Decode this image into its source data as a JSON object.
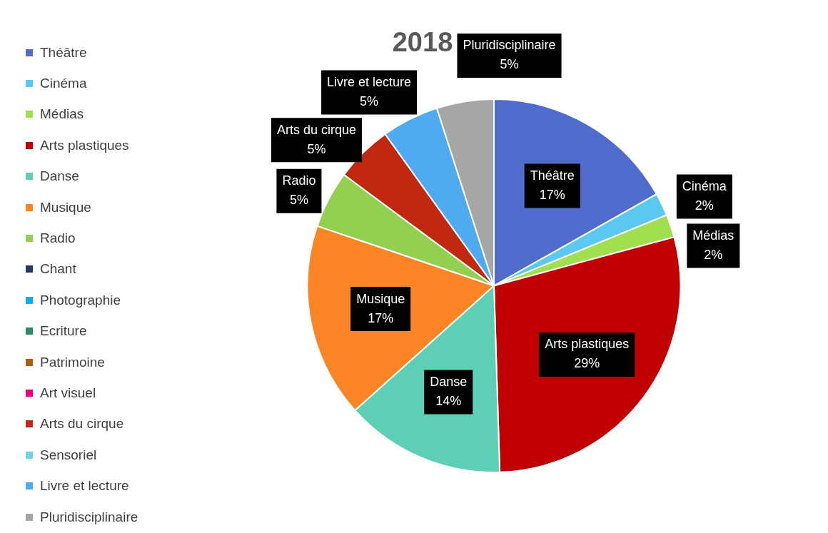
{
  "chart_data": {
    "type": "pie",
    "title": "2018",
    "categories": [
      "Théâtre",
      "Cinéma",
      "Médias",
      "Arts plastiques",
      "Danse",
      "Musique",
      "Radio",
      "Chant",
      "Photographie",
      "Ecriture",
      "Patrimoine",
      "Art visuel",
      "Arts du cirque",
      "Sensoriel",
      "Livre et lecture",
      "Pluridisciplinaire"
    ],
    "values": [
      17,
      2,
      2,
      29,
      14,
      17,
      5,
      0,
      0,
      0,
      0,
      0,
      5,
      0,
      5,
      5
    ],
    "value_labels": [
      "17%",
      "2%",
      "2%",
      "29%",
      "14%",
      "17%",
      "5%",
      null,
      null,
      null,
      null,
      null,
      "5%",
      null,
      "5%",
      "5%"
    ],
    "colors": [
      "#4f6bcc",
      "#5bc8f0",
      "#a0e04f",
      "#c00000",
      "#5dcfb4",
      "#fb8525",
      "#92d050",
      "#203864",
      "#00b0f0",
      "#2e8b6e",
      "#b35b0e",
      "#e6007e",
      "#c0290f",
      "#6fd0ec",
      "#4faaf0",
      "#a6a6a6"
    ],
    "legend": "left"
  }
}
